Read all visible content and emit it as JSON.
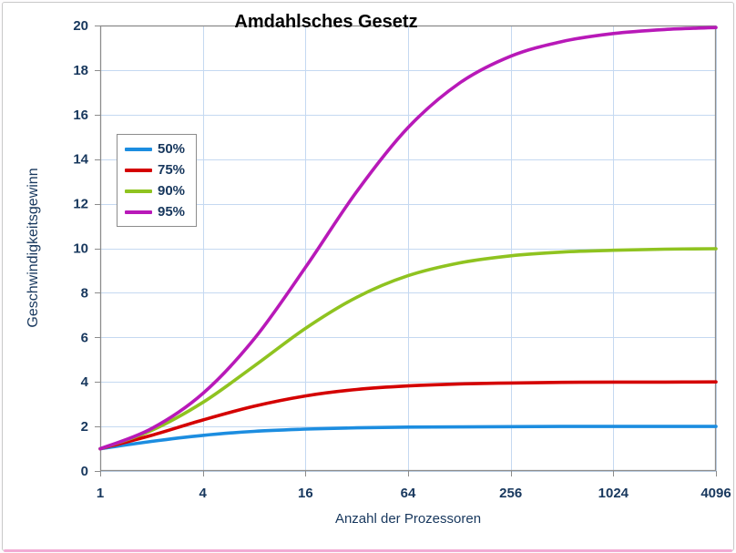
{
  "chart_data": {
    "type": "line",
    "title": "Amdahlsches Gesetz",
    "xlabel": "Anzahl der Prozessoren",
    "ylabel": "Geschwindigkeitsgewinn",
    "x_scale": "log2",
    "xlim": [
      1,
      4096
    ],
    "ylim": [
      0,
      20
    ],
    "xticks": [
      1,
      4,
      16,
      64,
      256,
      1024,
      4096
    ],
    "yticks": [
      0,
      2,
      4,
      6,
      8,
      10,
      12,
      14,
      16,
      18,
      20
    ],
    "grid": true,
    "legend_position": "upper-left-inside",
    "x": [
      1,
      2,
      4,
      8,
      16,
      32,
      64,
      128,
      256,
      512,
      1024,
      2048,
      4096
    ],
    "series": [
      {
        "name": "50%",
        "color": "#1c8de0",
        "values": [
          1,
          1.33,
          1.6,
          1.78,
          1.88,
          1.94,
          1.97,
          1.98,
          1.99,
          2.0,
          2.0,
          2.0,
          2.0
        ]
      },
      {
        "name": "75%",
        "color": "#d40000",
        "values": [
          1,
          1.6,
          2.29,
          2.91,
          3.37,
          3.66,
          3.82,
          3.91,
          3.95,
          3.98,
          3.99,
          3.99,
          4.0
        ]
      },
      {
        "name": "90%",
        "color": "#8fc320",
        "values": [
          1,
          1.82,
          3.08,
          4.71,
          6.4,
          7.8,
          8.77,
          9.34,
          9.66,
          9.83,
          9.91,
          9.96,
          9.98
        ]
      },
      {
        "name": "95%",
        "color": "#b819b8",
        "values": [
          1,
          1.9,
          3.48,
          5.93,
          9.14,
          12.55,
          15.42,
          17.41,
          18.62,
          19.28,
          19.64,
          19.82,
          19.91
        ]
      }
    ],
    "text_color": "#17375d",
    "grid_color": "#c5d9f1",
    "axis_color": "#8c8c8c"
  }
}
